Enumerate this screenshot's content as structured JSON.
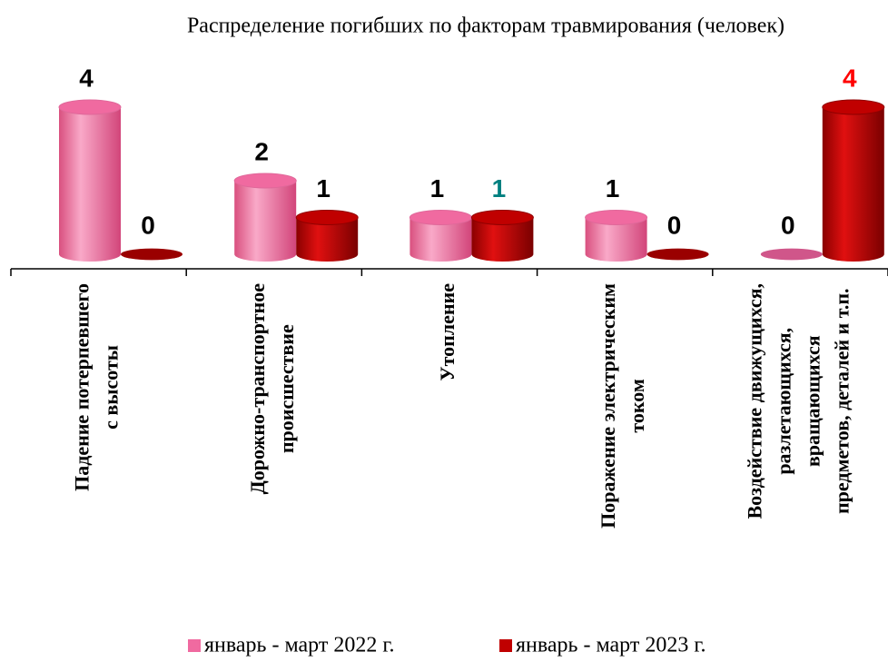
{
  "chart_data": {
    "type": "bar3d",
    "title": "Распределение погибших по факторам травмирования (человек)",
    "categories": [
      "Падение потерпевшего\nс высоты",
      "Дорожно-транспортное\nпроисшествие",
      "Утопление",
      "Поражение электрическим\nтоком",
      "Воздействие движущихся,\nразлетающихся,\nвращающихся\nпредметов, деталей и т.п."
    ],
    "series": [
      {
        "name": "январь - март 2022 г.",
        "color": "#f06aa0",
        "values": [
          4,
          2,
          1,
          1,
          0
        ],
        "label_colors": [
          "#000000",
          "#000000",
          "#000000",
          "#000000",
          "#000000"
        ]
      },
      {
        "name": "январь - март 2023 г.",
        "color": "#c00000",
        "values": [
          0,
          1,
          1,
          0,
          4
        ],
        "label_colors": [
          "#000000",
          "#000000",
          "#008080",
          "#000000",
          "#ff0000"
        ]
      }
    ],
    "ylim": [
      0,
      4
    ]
  }
}
